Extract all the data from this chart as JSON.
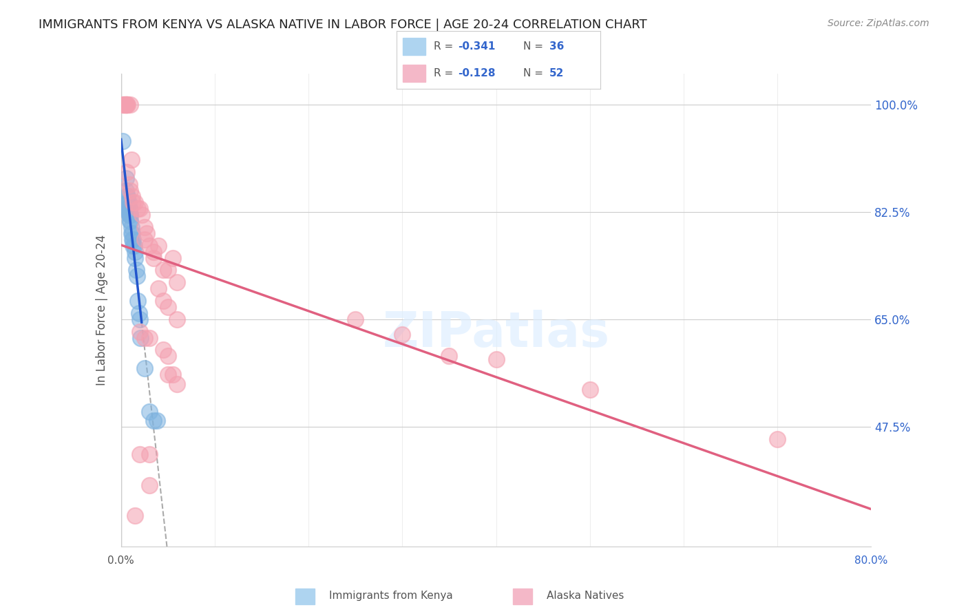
{
  "title": "IMMIGRANTS FROM KENYA VS ALASKA NATIVE IN LABOR FORCE | AGE 20-24 CORRELATION CHART",
  "source": "Source: ZipAtlas.com",
  "ylabel": "In Labor Force | Age 20-24",
  "ytick_labels": [
    "100.0%",
    "82.5%",
    "65.0%",
    "47.5%"
  ],
  "ytick_values": [
    1.0,
    0.825,
    0.65,
    0.475
  ],
  "xmin": 0.0,
  "xmax": 0.8,
  "ymin": 0.28,
  "ymax": 1.05,
  "blue_color": "#7EB3E0",
  "pink_color": "#F4A0B0",
  "blue_line_color": "#2255CC",
  "pink_line_color": "#E06080",
  "legend_text_color": "#3366CC",
  "legend_label_blue": "Immigrants from Kenya",
  "legend_label_pink": "Alaska Natives",
  "blue_scatter": [
    [
      0.002,
      0.94
    ],
    [
      0.005,
      0.88
    ],
    [
      0.005,
      0.86
    ],
    [
      0.006,
      0.85
    ],
    [
      0.007,
      0.85
    ],
    [
      0.007,
      0.84
    ],
    [
      0.007,
      0.83
    ],
    [
      0.008,
      0.84
    ],
    [
      0.008,
      0.83
    ],
    [
      0.009,
      0.83
    ],
    [
      0.009,
      0.83
    ],
    [
      0.009,
      0.82
    ],
    [
      0.009,
      0.82
    ],
    [
      0.01,
      0.82
    ],
    [
      0.01,
      0.82
    ],
    [
      0.01,
      0.81
    ],
    [
      0.01,
      0.81
    ],
    [
      0.011,
      0.8
    ],
    [
      0.011,
      0.79
    ],
    [
      0.012,
      0.79
    ],
    [
      0.012,
      0.78
    ],
    [
      0.013,
      0.78
    ],
    [
      0.013,
      0.77
    ],
    [
      0.014,
      0.77
    ],
    [
      0.015,
      0.76
    ],
    [
      0.015,
      0.75
    ],
    [
      0.016,
      0.73
    ],
    [
      0.017,
      0.72
    ],
    [
      0.018,
      0.68
    ],
    [
      0.019,
      0.66
    ],
    [
      0.02,
      0.65
    ],
    [
      0.021,
      0.62
    ],
    [
      0.025,
      0.57
    ],
    [
      0.03,
      0.5
    ],
    [
      0.035,
      0.485
    ],
    [
      0.038,
      0.485
    ]
  ],
  "pink_scatter": [
    [
      0.002,
      1.0
    ],
    [
      0.003,
      1.0
    ],
    [
      0.004,
      1.0
    ],
    [
      0.005,
      1.0
    ],
    [
      0.005,
      1.0
    ],
    [
      0.006,
      1.0
    ],
    [
      0.007,
      1.0
    ],
    [
      0.01,
      1.0
    ],
    [
      0.011,
      0.91
    ],
    [
      0.006,
      0.89
    ],
    [
      0.009,
      0.87
    ],
    [
      0.01,
      0.86
    ],
    [
      0.012,
      0.85
    ],
    [
      0.013,
      0.84
    ],
    [
      0.015,
      0.84
    ],
    [
      0.018,
      0.83
    ],
    [
      0.02,
      0.83
    ],
    [
      0.022,
      0.82
    ],
    [
      0.025,
      0.8
    ],
    [
      0.027,
      0.79
    ],
    [
      0.025,
      0.78
    ],
    [
      0.03,
      0.77
    ],
    [
      0.035,
      0.76
    ],
    [
      0.035,
      0.75
    ],
    [
      0.04,
      0.77
    ],
    [
      0.045,
      0.73
    ],
    [
      0.05,
      0.73
    ],
    [
      0.055,
      0.75
    ],
    [
      0.06,
      0.71
    ],
    [
      0.04,
      0.7
    ],
    [
      0.045,
      0.68
    ],
    [
      0.05,
      0.67
    ],
    [
      0.06,
      0.65
    ],
    [
      0.02,
      0.63
    ],
    [
      0.025,
      0.62
    ],
    [
      0.03,
      0.62
    ],
    [
      0.045,
      0.6
    ],
    [
      0.05,
      0.59
    ],
    [
      0.05,
      0.56
    ],
    [
      0.055,
      0.56
    ],
    [
      0.06,
      0.545
    ],
    [
      0.02,
      0.43
    ],
    [
      0.03,
      0.43
    ],
    [
      0.03,
      0.38
    ],
    [
      0.015,
      0.33
    ],
    [
      0.7,
      0.455
    ],
    [
      0.5,
      0.535
    ],
    [
      0.4,
      0.585
    ],
    [
      0.35,
      0.59
    ],
    [
      0.3,
      0.625
    ],
    [
      0.25,
      0.65
    ]
  ]
}
